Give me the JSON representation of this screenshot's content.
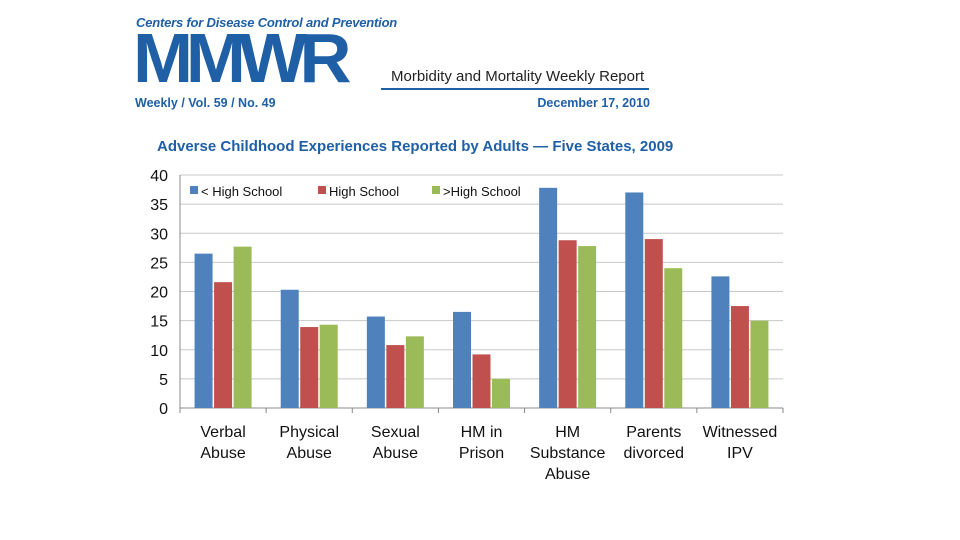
{
  "header": {
    "org": "Centers for Disease Control and Prevention",
    "logo": "MMWR",
    "subtitle": "Morbidity and Mortality Weekly Report",
    "issue": "Weekly / Vol. 59 / No. 49",
    "date": "December 17, 2010"
  },
  "colors": {
    "brand": "#1f5fa5",
    "series": [
      "#4f81bd",
      "#c0504d",
      "#9bbb59"
    ]
  },
  "chart_data": {
    "type": "bar",
    "title": "Adverse Childhood Experiences Reported by Adults — Five States, 2009",
    "xlabel": "",
    "ylabel": "",
    "ylim": [
      0,
      40
    ],
    "yticks": [
      0,
      5,
      10,
      15,
      20,
      25,
      30,
      35,
      40
    ],
    "grid": true,
    "legend_position": "top",
    "categories": [
      [
        "Verbal",
        "Abuse"
      ],
      [
        "Physical",
        "Abuse"
      ],
      [
        "Sexual",
        "Abuse"
      ],
      [
        "HM in",
        "Prison"
      ],
      [
        "HM",
        "Substance",
        "Abuse"
      ],
      [
        "Parents",
        "divorced"
      ],
      [
        "Witnessed",
        "IPV"
      ]
    ],
    "series": [
      {
        "name": "< High School",
        "values": [
          26.5,
          20.3,
          15.7,
          16.5,
          37.8,
          37.0,
          22.6
        ]
      },
      {
        "name": "High School",
        "values": [
          21.6,
          13.9,
          10.8,
          9.2,
          28.8,
          29.0,
          17.5
        ]
      },
      {
        "name": ">High School",
        "values": [
          27.7,
          14.3,
          12.3,
          5.0,
          27.8,
          24.0,
          15.0
        ]
      }
    ]
  }
}
